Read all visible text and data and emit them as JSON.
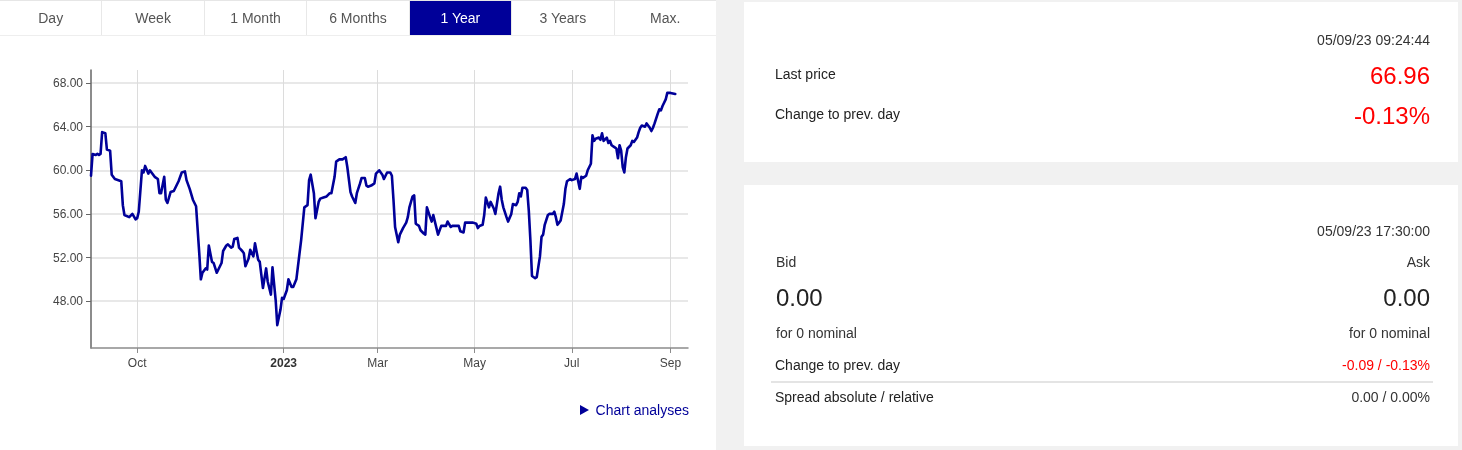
{
  "chart_data": [
    {
      "type": "other",
      "categories": [
        "Day",
        "Week",
        "1 Month",
        "6 Months",
        "1 Year",
        "3 Years",
        "Max."
      ],
      "colors": [
        "#ffffff",
        "#ffffff",
        "#ffffff",
        "#ffffff",
        "#000099",
        "#ffffff",
        "#ffffff"
      ]
    },
    {
      "type": "line",
      "color": "#000099",
      "x": [
        "2022-09-02",
        "2022-09-03",
        "2022-09-05",
        "2022-09-06",
        "2022-09-07",
        "2022-09-08",
        "2022-09-09",
        "2022-09-11",
        "2022-09-12",
        "2022-09-14",
        "2022-09-15",
        "2022-09-17",
        "2022-09-21",
        "2022-09-22",
        "2022-09-23",
        "2022-09-26",
        "2022-09-28",
        "2022-09-30",
        "2022-10-01",
        "2022-10-02",
        "2022-10-04",
        "2022-10-05",
        "2022-10-06",
        "2022-10-08",
        "2022-10-09",
        "2022-10-10",
        "2022-10-12",
        "2022-10-14",
        "2022-10-15",
        "2022-10-16",
        "2022-10-18",
        "2022-10-19",
        "2022-10-20",
        "2022-10-22",
        "2022-10-24",
        "2022-10-26",
        "2022-10-27",
        "2022-10-29",
        "2022-10-31",
        "2022-11-01",
        "2022-11-03",
        "2022-11-05",
        "2022-11-07",
        "2022-11-09",
        "2022-11-10",
        "2022-11-11",
        "2022-11-13",
        "2022-11-14",
        "2022-11-15",
        "2022-11-17",
        "2022-11-18",
        "2022-11-20",
        "2022-11-21",
        "2022-11-23",
        "2022-11-24",
        "2022-11-26",
        "2022-11-27",
        "2022-11-29",
        "2022-11-30",
        "2022-12-01",
        "2022-12-03",
        "2022-12-04",
        "2022-12-06",
        "2022-12-07",
        "2022-12-08",
        "2022-12-10",
        "2022-12-11",
        "2022-12-13",
        "2022-12-14",
        "2022-12-16",
        "2022-12-17",
        "2022-12-18",
        "2022-12-19",
        "2022-12-21",
        "2022-12-22",
        "2022-12-24",
        "2022-12-25",
        "2022-12-27",
        "2022-12-28",
        "2022-12-30",
        "2022-12-31",
        "2023-01-01",
        "2023-01-03",
        "2023-01-04",
        "2023-01-06",
        "2023-01-07",
        "2023-01-09",
        "2023-01-11",
        "2023-01-12",
        "2023-01-14",
        "2023-01-16",
        "2023-01-17",
        "2023-01-18",
        "2023-01-20",
        "2023-01-21",
        "2023-01-23",
        "2023-01-24",
        "2023-01-26",
        "2023-01-28",
        "2023-01-30",
        "2023-01-31",
        "2023-02-02",
        "2023-02-03",
        "2023-02-05",
        "2023-02-07",
        "2023-02-09",
        "2023-02-10",
        "2023-02-12",
        "2023-02-13",
        "2023-02-15",
        "2023-02-16",
        "2023-02-18",
        "2023-02-19",
        "2023-02-21",
        "2023-02-22",
        "2023-02-23",
        "2023-02-25",
        "2023-02-27",
        "2023-02-28",
        "2023-03-02",
        "2023-03-04",
        "2023-03-05",
        "2023-03-07",
        "2023-03-09",
        "2023-03-10",
        "2023-03-11",
        "2023-03-12",
        "2023-03-14",
        "2023-03-15",
        "2023-03-17",
        "2023-03-19",
        "2023-03-20",
        "2023-03-21",
        "2023-03-23",
        "2023-03-24",
        "2023-03-25",
        "2023-03-27",
        "2023-03-28",
        "2023-03-30",
        "2023-03-31",
        "2023-04-01",
        "2023-04-03",
        "2023-04-04",
        "2023-04-05",
        "2023-04-07",
        "2023-04-08",
        "2023-04-10",
        "2023-04-11",
        "2023-04-13",
        "2023-04-14",
        "2023-04-16",
        "2023-04-17",
        "2023-04-19",
        "2023-04-21",
        "2023-04-22",
        "2023-04-24",
        "2023-04-25",
        "2023-04-26",
        "2023-04-28",
        "2023-04-30",
        "2023-05-02",
        "2023-05-03",
        "2023-05-04",
        "2023-05-06",
        "2023-05-07",
        "2023-05-08",
        "2023-05-10",
        "2023-05-11",
        "2023-05-13",
        "2023-05-14",
        "2023-05-16",
        "2023-05-17",
        "2023-05-18",
        "2023-05-19",
        "2023-05-21",
        "2023-05-22",
        "2023-05-24",
        "2023-05-25",
        "2023-05-27",
        "2023-05-28",
        "2023-05-29",
        "2023-05-30",
        "2023-05-31",
        "2023-06-02",
        "2023-06-03",
        "2023-06-04",
        "2023-06-05",
        "2023-06-06",
        "2023-06-08",
        "2023-06-09",
        "2023-06-11",
        "2023-06-12",
        "2023-06-13",
        "2023-06-14",
        "2023-06-16",
        "2023-06-17",
        "2023-06-19",
        "2023-06-20",
        "2023-06-21",
        "2023-06-22",
        "2023-06-23",
        "2023-06-24",
        "2023-06-26",
        "2023-06-27",
        "2023-06-28",
        "2023-06-30",
        "2023-07-01",
        "2023-07-03",
        "2023-07-04",
        "2023-07-06",
        "2023-07-07",
        "2023-07-08",
        "2023-07-10",
        "2023-07-11",
        "2023-07-13",
        "2023-07-14",
        "2023-07-15",
        "2023-07-16",
        "2023-07-18",
        "2023-07-19",
        "2023-07-20",
        "2023-07-21",
        "2023-07-23",
        "2023-07-24",
        "2023-07-25",
        "2023-07-26",
        "2023-07-28",
        "2023-07-29",
        "2023-07-30",
        "2023-07-31",
        "2023-08-01",
        "2023-08-02",
        "2023-08-03",
        "2023-08-04",
        "2023-08-05",
        "2023-08-07",
        "2023-08-08",
        "2023-08-09",
        "2023-08-11",
        "2023-08-12",
        "2023-08-13",
        "2023-08-14",
        "2023-08-16",
        "2023-08-17",
        "2023-08-19",
        "2023-08-20",
        "2023-08-21",
        "2023-08-22",
        "2023-08-24",
        "2023-08-25",
        "2023-08-26",
        "2023-08-27",
        "2023-08-29",
        "2023-08-30",
        "2023-09-01",
        "2023-09-04"
      ],
      "values": [
        59.5,
        61.5,
        61.4,
        61.5,
        61.4,
        61.5,
        63.5,
        63.4,
        61.9,
        61.8,
        59.6,
        59.2,
        59.0,
        56.8,
        55.9,
        55.7,
        56.0,
        55.5,
        55.6,
        56.2,
        60.0,
        59.8,
        60.4,
        59.7,
        60.0,
        59.8,
        59.4,
        59.2,
        57.9,
        57.9,
        59.4,
        57.3,
        57.0,
        58.0,
        58.1,
        58.7,
        59.0,
        59.8,
        59.9,
        59.1,
        58.3,
        57.3,
        56.7,
        52.4,
        50.0,
        50.6,
        51.0,
        50.9,
        53.1,
        51.6,
        51.5,
        50.6,
        50.9,
        51.5,
        52.6,
        53.1,
        53.2,
        52.9,
        53.0,
        53.7,
        53.8,
        52.9,
        52.6,
        52.4,
        51.2,
        51.9,
        52.7,
        52.1,
        53.3,
        51.8,
        51.6,
        50.4,
        49.2,
        51.0,
        49.8,
        48.6,
        51.1,
        48.1,
        45.8,
        47.2,
        48.3,
        48.2,
        49.0,
        50.0,
        49.3,
        49.3,
        50.0,
        52.4,
        53.6,
        56.6,
        56.8,
        59.1,
        59.6,
        57.9,
        55.6,
        57.1,
        57.4,
        57.5,
        57.6,
        57.9,
        57.9,
        59.4,
        60.8,
        61.0,
        61.0,
        61.2,
        60.3,
        58.0,
        57.6,
        57.0,
        57.9,
        58.8,
        59.3,
        59.3,
        58.6,
        58.5,
        58.6,
        58.8,
        59.7,
        60.0,
        59.6,
        59.2,
        59.8,
        59.8,
        59.5,
        57.3,
        54.8,
        53.4,
        54.1,
        54.7,
        55.2,
        55.7,
        56.6,
        57.6,
        57.7,
        55.1,
        54.9,
        54.5,
        54.2,
        54.1,
        56.6,
        55.7,
        55.3,
        55.9,
        54.7,
        54.1,
        54.9,
        54.9,
        54.9,
        55.3,
        54.8,
        54.9,
        54.9,
        54.9,
        54.4,
        54.3,
        55.2,
        55.2,
        55.2,
        55.2,
        55.1,
        54.7,
        54.9,
        55.0,
        55.9,
        57.5,
        56.6,
        57.1,
        56.5,
        56.0,
        57.9,
        58.5,
        57.3,
        56.6,
        55.7,
        55.3,
        56.0,
        56.9,
        56.8,
        57.1,
        57.9,
        57.6,
        58.4,
        58.4,
        58.2,
        56.3,
        53.6,
        50.3,
        50.1,
        50.2,
        52.1,
        53.9,
        54.1,
        55.0,
        55.9,
        56.0,
        56.0,
        56.2,
        55.7,
        55.0,
        55.2,
        55.4,
        56.9,
        58.3,
        59.0,
        59.2,
        59.1,
        59.2,
        59.7,
        58.3,
        59.4,
        59.3,
        59.5,
        60.0,
        60.6,
        63.2,
        62.7,
        62.9,
        63.0,
        62.8,
        63.4,
        62.7,
        63.0,
        62.5,
        62.7,
        62.3,
        62.1,
        62.0,
        61.1,
        62.3,
        61.8,
        60.3,
        59.8,
        61.2,
        62.0,
        62.3,
        62.7,
        62.6,
        63.0,
        63.5,
        63.9,
        64.1,
        64.0,
        64.3,
        63.9,
        63.6,
        63.9,
        64.3,
        65.2,
        65.6,
        65.5,
        65.9,
        66.5,
        67.1,
        67.1,
        67.0
      ],
      "xlim": [
        "2022-09-02",
        "2023-09-12"
      ],
      "xticks": [
        {
          "value": "2022-10-01",
          "label": "Oct"
        },
        {
          "value": "2023-01-01",
          "label": "2023"
        },
        {
          "value": "2023-03-01",
          "label": "Mar"
        },
        {
          "value": "2023-05-01",
          "label": "May"
        },
        {
          "value": "2023-07-01",
          "label": "Jul"
        },
        {
          "value": "2023-09-01",
          "label": "Sep"
        }
      ],
      "ylim": [
        43.7,
        69.2
      ],
      "yticks": [
        {
          "value": 48,
          "label": "48.00"
        },
        {
          "value": 52,
          "label": "52.00"
        },
        {
          "value": 56,
          "label": "56.00"
        },
        {
          "value": 60,
          "label": "60.00"
        },
        {
          "value": 64,
          "label": "64.00"
        },
        {
          "value": 68,
          "label": "68.00"
        }
      ],
      "grid": true,
      "annotations": [
        "Chart analyses"
      ]
    },
    {
      "type": "other",
      "subtitle": "05/09/23 09:24:44",
      "categories": [
        "Last price",
        "Change to prev. day"
      ],
      "value_labels": [
        "66.96",
        "-0.13%"
      ]
    },
    {
      "type": "other",
      "subtitle": "05/09/23 17:30:00",
      "categories": [
        "Bid",
        "Ask",
        "Change to prev. day",
        "Spread absolute / relative"
      ],
      "value_labels": [
        "0.00",
        "0.00",
        "-0.09 / -0.13%",
        "0.00 / 0.00%"
      ],
      "annotations": [
        "for 0 nominal",
        "for 0 nominal"
      ]
    }
  ]
}
